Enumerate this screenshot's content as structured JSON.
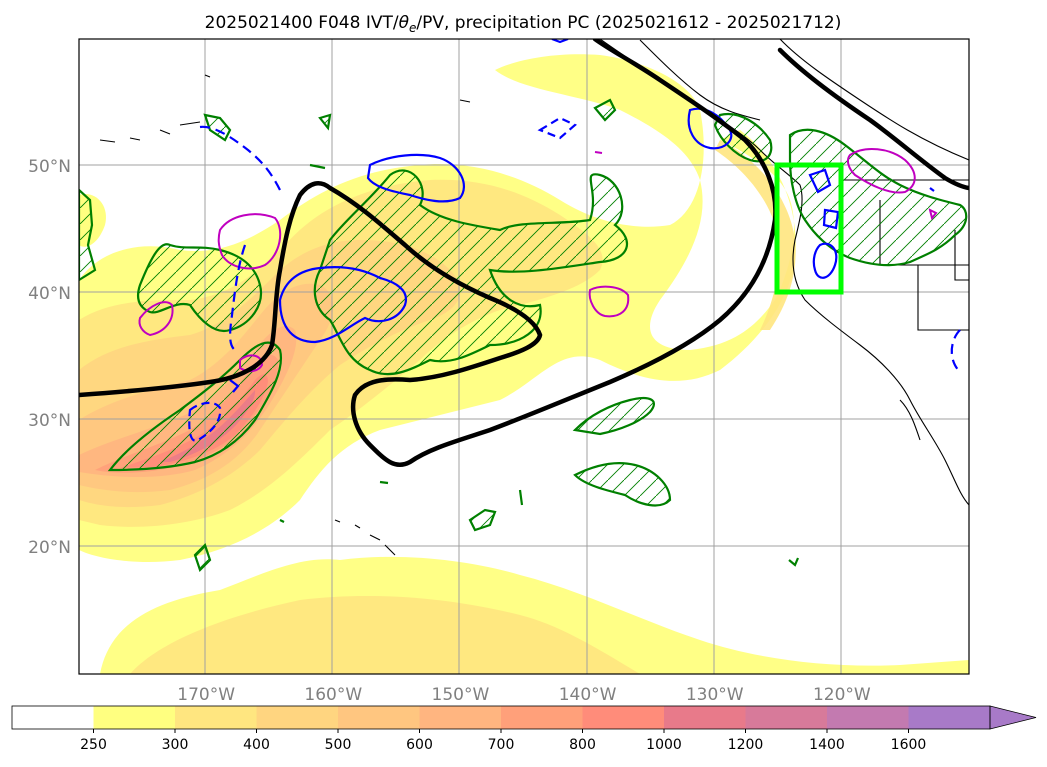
{
  "title": {
    "prefix": "2025021400 F048 IVT/",
    "theta": "θ",
    "theta_sub": "e",
    "suffix": "/PV, precipitation PC (2025021612 - 2025021712)"
  },
  "map": {
    "lat_labels": [
      "50°N",
      "40°N",
      "30°N",
      "20°N"
    ],
    "lon_labels": [
      "170°W",
      "160°W",
      "150°W",
      "140°W",
      "130°W",
      "120°W"
    ],
    "lat_values": [
      50,
      40,
      30,
      20
    ],
    "lon_values": [
      -170,
      -160,
      -150,
      -140,
      -130,
      -120
    ],
    "extent": {
      "lon_min": -180,
      "lon_max": -110,
      "lat_min": 10,
      "lat_max": 60
    },
    "grid": true,
    "box_region": {
      "lon_min": -125,
      "lon_max": -120,
      "lat_min": 40,
      "lat_max": 50
    },
    "colors": {
      "box": "#00ff00",
      "precip_contour": "#008000",
      "pv_positive": "#0000ff",
      "pv_negative": "#0000ff",
      "theta_e": "#000000",
      "other_contour": "#c000c0",
      "coast": "#000000"
    }
  },
  "colorbar": {
    "labels": [
      "250",
      "300",
      "400",
      "500",
      "600",
      "700",
      "800",
      "1000",
      "1200",
      "1400",
      "1600"
    ],
    "colors": [
      "#ffffff",
      "#ffff80",
      "#ffe680",
      "#ffd580",
      "#ffc680",
      "#ffb580",
      "#ffa07a",
      "#ff8c7a",
      "#e87a8a",
      "#d77a9a",
      "#c37ab0",
      "#a87ac8"
    ],
    "extend": "max"
  }
}
